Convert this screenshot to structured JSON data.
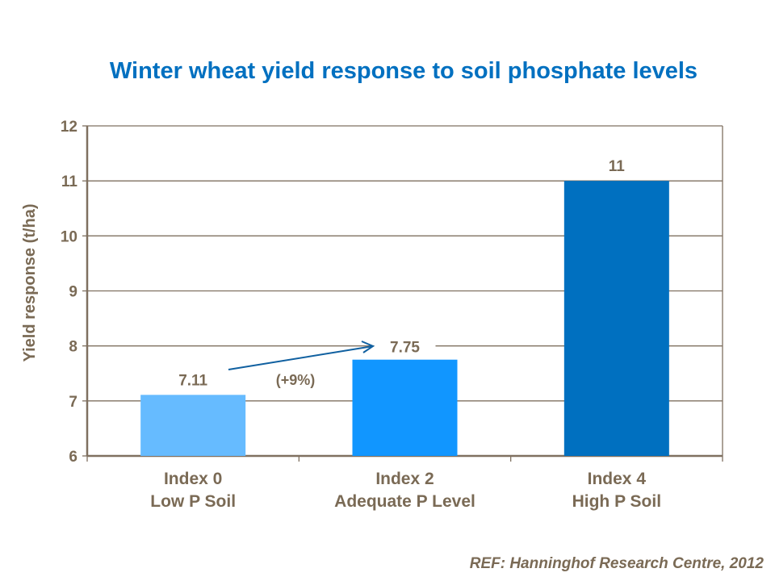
{
  "chart_data": {
    "type": "bar",
    "title": "Winter wheat yield response to soil phosphate levels",
    "ylabel": "Yield response (t/ha)",
    "xlabel": "",
    "ylim": [
      6,
      12
    ],
    "yticks": [
      6,
      7,
      8,
      9,
      10,
      11,
      12
    ],
    "grid": true,
    "categories": [
      [
        "Index 0",
        "Low P Soil"
      ],
      [
        "Index 2",
        "Adequate P Level"
      ],
      [
        "Index 4",
        "High P Soil"
      ]
    ],
    "values": [
      7.11,
      7.75,
      11
    ],
    "data_labels": [
      "7.11",
      "7.75",
      "11"
    ],
    "bar_colors": [
      "#66BBFF",
      "#1196FF",
      "#0070C0"
    ],
    "annotation": {
      "text": "(+9%)",
      "arrow_from": "Index 0",
      "arrow_to": "Index 2",
      "arrow_color": "#1060A0"
    }
  },
  "reference": "REF: Hanninghof Research Centre, 2012",
  "colors": {
    "title": "#0070C0",
    "text": "#7A6A55",
    "axis": "#7F7060"
  }
}
